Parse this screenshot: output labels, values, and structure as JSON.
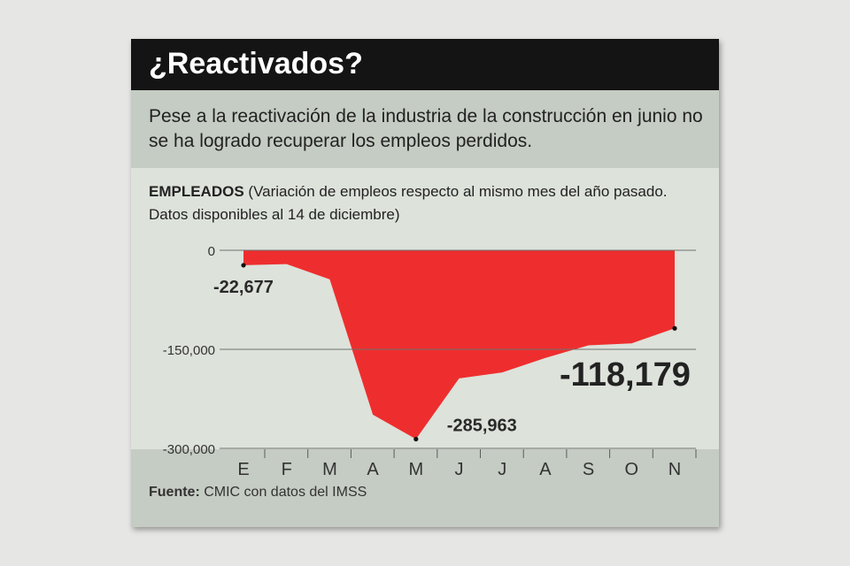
{
  "title": "¿Reactivados?",
  "subtitle": "Pese a la reactivación de la industria de la construcción en junio no se ha logrado recuperar los empleos perdidos.",
  "header": {
    "bold": "EMPLEADOS",
    "rest": " (Variación de empleos respecto al mismo mes del año pasado.  Datos disponibles al 14 de diciembre)"
  },
  "source": {
    "label": "Fuente:",
    "text": " CMIC con datos del IMSS"
  },
  "colors": {
    "area": "#ee2e2e",
    "title_bg": "#141414",
    "band": "#c5ccc3",
    "panel": "#dde2db"
  },
  "chart_data": {
    "type": "area",
    "categories": [
      "E",
      "F",
      "M",
      "A",
      "M",
      "J",
      "J",
      "A",
      "S",
      "O",
      "N"
    ],
    "values": [
      -22677,
      -21000,
      -44000,
      -249000,
      -285963,
      -194000,
      -185000,
      -163000,
      -144000,
      -141000,
      -118179
    ],
    "ylim": [
      -300000,
      0
    ],
    "yticks": [
      {
        "value": 0,
        "label": "0"
      },
      {
        "value": -150000,
        "label": "-150,000"
      },
      {
        "value": -300000,
        "label": "-300,000"
      }
    ],
    "annotations": [
      {
        "index": 0,
        "label": "-22,677",
        "style": "small"
      },
      {
        "index": 4,
        "label": "-285,963",
        "style": "small"
      },
      {
        "index": 10,
        "label": "-118,179",
        "style": "large"
      }
    ],
    "grid": "horizontal",
    "legend": "none"
  }
}
